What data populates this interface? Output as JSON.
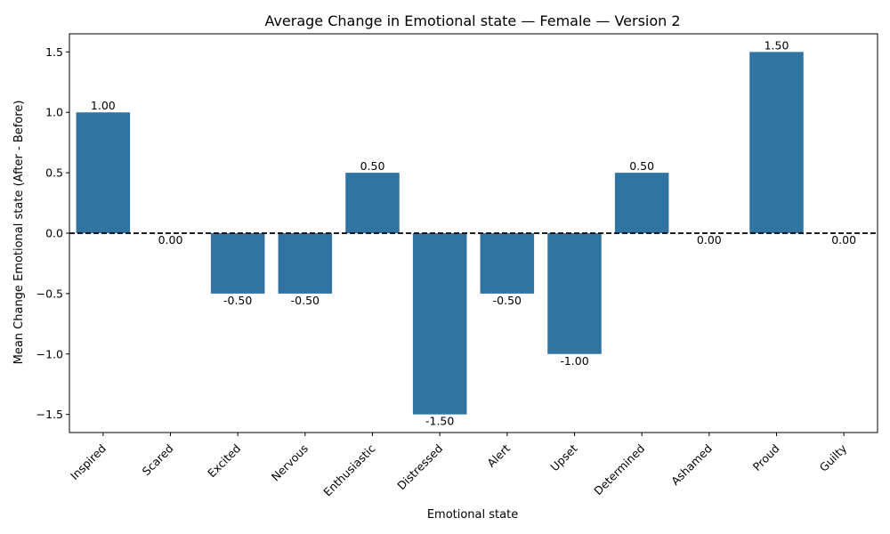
{
  "chart_data": {
    "type": "bar",
    "title": "Average Change in Emotional state — Female — Version 2",
    "xlabel": "Emotional state",
    "ylabel": "Mean Change Emotional state (After - Before)",
    "categories": [
      "Inspired",
      "Scared",
      "Excited",
      "Nervous",
      "Enthusiastic",
      "Distressed",
      "Alert",
      "Upset",
      "Determined",
      "Ashamed",
      "Proud",
      "Guilty"
    ],
    "values": [
      1.0,
      0.0,
      -0.5,
      -0.5,
      0.5,
      -1.5,
      -0.5,
      -1.0,
      0.5,
      0.0,
      1.5,
      0.0
    ],
    "data_labels": [
      "1.00",
      "0.00",
      "-0.50",
      "-0.50",
      "0.50",
      "-1.50",
      "-0.50",
      "-1.00",
      "0.50",
      "0.00",
      "1.50",
      "0.00"
    ],
    "ylim": [
      -1.65,
      1.65
    ],
    "yticks": [
      -1.5,
      -1.0,
      -0.5,
      0.0,
      0.5,
      1.0,
      1.5
    ],
    "ytick_labels": [
      "−1.5",
      "−1.0",
      "−0.5",
      "0.0",
      "0.5",
      "1.0",
      "1.5"
    ],
    "reference_line": 0.0,
    "grid": false,
    "bar_color": "#3274a1"
  }
}
